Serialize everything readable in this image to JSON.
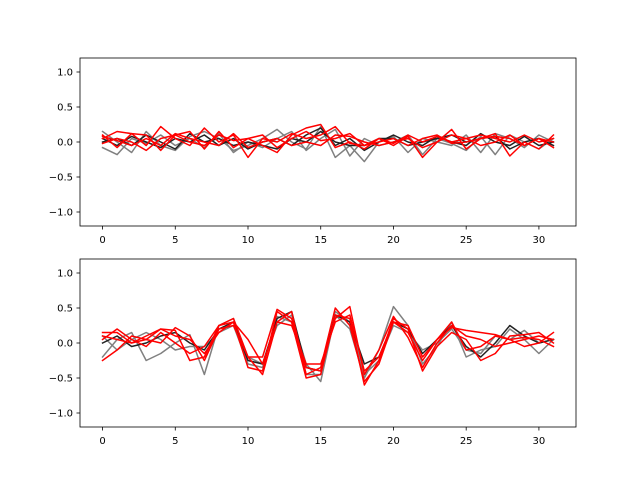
{
  "colors": {
    "axes_edge": "#000000",
    "background": "#ffffff",
    "gray": "#808080",
    "dark": "#222222",
    "red": "#ff0000"
  },
  "chart_data": [
    {
      "type": "line",
      "title": "",
      "xlabel": "",
      "ylabel": "",
      "xlim": [
        -1.55,
        32.55
      ],
      "ylim": [
        -1.2,
        1.2
      ],
      "xticks": [
        0,
        5,
        10,
        15,
        20,
        25,
        30
      ],
      "yticks": [
        -1.0,
        -0.5,
        0.0,
        0.5,
        1.0
      ],
      "grid": false,
      "legend": "none",
      "x": [
        0,
        1,
        2,
        3,
        4,
        5,
        6,
        7,
        8,
        9,
        10,
        11,
        12,
        13,
        14,
        15,
        16,
        17,
        18,
        19,
        20,
        21,
        22,
        23,
        24,
        25,
        26,
        27,
        28,
        29,
        30,
        31
      ],
      "series": [
        {
          "color": "gray",
          "values": [
            0.15,
            0.0,
            -0.15,
            0.15,
            -0.05,
            -0.12,
            0.08,
            0.15,
            0.05,
            -0.12,
            -0.05,
            0.05,
            0.18,
            0.0,
            -0.1,
            0.22,
            -0.22,
            -0.05,
            -0.28,
            0.0,
            0.08,
            -0.15,
            0.05,
            0.0,
            -0.05,
            0.1,
            -0.15,
            0.12,
            0.05,
            -0.08,
            0.1,
            0.0
          ]
        },
        {
          "color": "gray",
          "values": [
            -0.08,
            -0.18,
            0.05,
            -0.02,
            0.1,
            -0.05,
            0.05,
            -0.08,
            0.12,
            -0.15,
            0.0,
            -0.08,
            0.05,
            0.15,
            -0.12,
            0.05,
            0.18,
            -0.2,
            0.05,
            -0.05,
            0.0,
            0.1,
            -0.18,
            0.05,
            -0.02,
            -0.12,
            0.08,
            -0.18,
            0.1,
            0.0,
            -0.1,
            0.05
          ]
        },
        {
          "color": "dark",
          "values": [
            0.05,
            -0.05,
            0.08,
            0.0,
            -0.08,
            0.05,
            0.0,
            0.1,
            -0.05,
            0.05,
            -0.1,
            0.0,
            0.05,
            -0.05,
            0.1,
            0.2,
            -0.05,
            0.05,
            -0.12,
            0.0,
            0.1,
            0.0,
            -0.05,
            0.08,
            0.0,
            -0.05,
            0.12,
            0.0,
            -0.05,
            0.08,
            -0.05,
            0.0
          ]
        },
        {
          "color": "dark",
          "values": [
            0.0,
            0.05,
            -0.05,
            0.1,
            0.0,
            -0.1,
            0.12,
            0.0,
            0.05,
            -0.05,
            0.0,
            -0.05,
            -0.1,
            0.05,
            0.0,
            0.15,
            0.0,
            -0.05,
            -0.05,
            0.05,
            0.05,
            -0.05,
            0.0,
            0.05,
            0.1,
            0.0,
            0.05,
            0.08,
            -0.1,
            0.0,
            0.05,
            -0.05
          ]
        },
        {
          "color": "red",
          "values": [
            0.1,
            -0.08,
            0.12,
            0.1,
            -0.12,
            0.1,
            0.15,
            -0.1,
            0.15,
            -0.08,
            0.05,
            -0.05,
            -0.15,
            0.1,
            0.2,
            0.25,
            -0.08,
            0.0,
            -0.1,
            0.05,
            -0.05,
            0.08,
            -0.22,
            0.0,
            0.18,
            -0.1,
            0.05,
            0.12,
            -0.2,
            0.0,
            -0.1,
            0.1
          ]
        },
        {
          "color": "red",
          "values": [
            0.05,
            0.15,
            0.12,
            -0.05,
            0.22,
            0.05,
            -0.05,
            0.2,
            0.0,
            0.1,
            -0.22,
            0.05,
            0.0,
            0.12,
            0.05,
            0.1,
            0.22,
            -0.02,
            -0.05,
            0.05,
            -0.02,
            0.1,
            0.0,
            0.08,
            0.0,
            0.05,
            0.1,
            0.05,
            0.0,
            0.1,
            0.0,
            0.05
          ]
        },
        {
          "color": "red",
          "values": [
            -0.02,
            0.05,
            0.0,
            -0.12,
            0.05,
            0.1,
            0.0,
            -0.05,
            0.1,
            0.02,
            0.05,
            0.1,
            -0.08,
            0.05,
            0.15,
            0.02,
            0.05,
            0.12,
            -0.05,
            0.0,
            0.05,
            -0.05,
            0.05,
            0.1,
            -0.02,
            0.0,
            0.05,
            0.08,
            0.05,
            -0.05,
            0.05,
            -0.08
          ]
        },
        {
          "color": "red",
          "values": [
            0.08,
            0.02,
            -0.05,
            0.05,
            -0.05,
            0.12,
            0.05,
            0.0,
            -0.05,
            0.12,
            -0.08,
            0.0,
            0.05,
            -0.05,
            0.0,
            -0.05,
            0.1,
            0.08,
            0.0,
            -0.05,
            0.0,
            0.05,
            -0.08,
            0.0,
            0.1,
            0.05,
            -0.05,
            0.0,
            0.1,
            -0.05,
            0.05,
            0.0
          ]
        }
      ]
    },
    {
      "type": "line",
      "title": "",
      "xlabel": "",
      "ylabel": "",
      "xlim": [
        -1.55,
        32.55
      ],
      "ylim": [
        -1.2,
        1.2
      ],
      "xticks": [
        0,
        5,
        10,
        15,
        20,
        25,
        30
      ],
      "yticks": [
        -1.0,
        -0.5,
        0.0,
        0.5,
        1.0
      ],
      "grid": false,
      "legend": "none",
      "x": [
        0,
        1,
        2,
        3,
        4,
        5,
        6,
        7,
        8,
        9,
        10,
        11,
        12,
        13,
        14,
        15,
        16,
        17,
        18,
        19,
        20,
        21,
        22,
        23,
        24,
        25,
        26,
        27,
        28,
        29,
        30,
        31
      ],
      "series": [
        {
          "color": "gray",
          "values": [
            -0.2,
            0.05,
            0.15,
            -0.25,
            -0.15,
            0.0,
            0.12,
            -0.45,
            0.25,
            0.35,
            -0.2,
            -0.3,
            0.25,
            0.4,
            -0.3,
            -0.55,
            0.4,
            0.2,
            -0.5,
            -0.1,
            0.52,
            0.25,
            -0.3,
            -0.05,
            0.3,
            -0.2,
            -0.1,
            -0.05,
            0.2,
            0.05,
            -0.15,
            0.05
          ]
        },
        {
          "color": "gray",
          "values": [
            0.1,
            -0.1,
            0.05,
            0.15,
            0.05,
            -0.1,
            -0.05,
            -0.05,
            0.15,
            0.25,
            -0.3,
            -0.35,
            0.38,
            0.3,
            -0.45,
            -0.45,
            0.45,
            0.3,
            -0.45,
            -0.25,
            0.25,
            0.15,
            -0.1,
            0.0,
            0.2,
            -0.1,
            -0.15,
            0.1,
            0.05,
            0.18,
            0.0,
            0.05
          ]
        },
        {
          "color": "dark",
          "values": [
            0.0,
            0.1,
            -0.05,
            0.0,
            0.1,
            0.15,
            0.0,
            -0.1,
            0.2,
            0.3,
            -0.25,
            -0.3,
            0.35,
            0.45,
            -0.35,
            -0.4,
            0.4,
            0.3,
            -0.3,
            -0.2,
            0.3,
            0.2,
            -0.15,
            0.05,
            0.25,
            -0.05,
            -0.2,
            0.0,
            0.25,
            0.1,
            0.0,
            0.05
          ]
        },
        {
          "color": "red",
          "values": [
            -0.25,
            -0.1,
            0.1,
            0.05,
            0.2,
            0.18,
            -0.25,
            -0.2,
            0.25,
            0.3,
            -0.35,
            -0.4,
            0.45,
            0.3,
            -0.5,
            -0.45,
            0.4,
            0.35,
            -0.6,
            -0.25,
            0.35,
            0.2,
            -0.4,
            -0.05,
            0.15,
            0.05,
            -0.25,
            -0.15,
            0.1,
            0.12,
            0.15,
            0.0
          ]
        },
        {
          "color": "red",
          "values": [
            0.15,
            0.15,
            0.0,
            0.05,
            0.0,
            0.22,
            0.1,
            -0.25,
            0.2,
            0.25,
            -0.2,
            -0.45,
            0.3,
            0.45,
            -0.45,
            -0.35,
            0.5,
            0.25,
            -0.55,
            -0.3,
            0.3,
            0.15,
            -0.25,
            0.05,
            0.3,
            -0.1,
            -0.05,
            0.1,
            0.05,
            -0.05,
            0.0,
            0.15
          ]
        },
        {
          "color": "red",
          "values": [
            0.05,
            0.2,
            0.05,
            -0.05,
            0.15,
            0.0,
            -0.15,
            -0.05,
            0.25,
            0.35,
            -0.2,
            -0.2,
            0.48,
            0.35,
            -0.35,
            -0.4,
            0.35,
            0.52,
            -0.45,
            -0.1,
            0.38,
            0.08,
            -0.35,
            0.0,
            0.25,
            0.1,
            0.05,
            -0.05,
            0.0,
            0.05,
            0.1,
            0.05
          ]
        },
        {
          "color": "red",
          "values": [
            0.1,
            0.05,
            0.0,
            0.1,
            0.2,
            0.1,
            0.05,
            -0.15,
            0.15,
            0.3,
            0.05,
            -0.3,
            0.3,
            0.25,
            -0.3,
            -0.3,
            0.3,
            0.4,
            -0.4,
            -0.2,
            0.3,
            0.25,
            -0.2,
            0.05,
            0.22,
            0.18,
            0.15,
            0.12,
            0.05,
            0.08,
            0.05,
            -0.05
          ]
        }
      ]
    }
  ]
}
